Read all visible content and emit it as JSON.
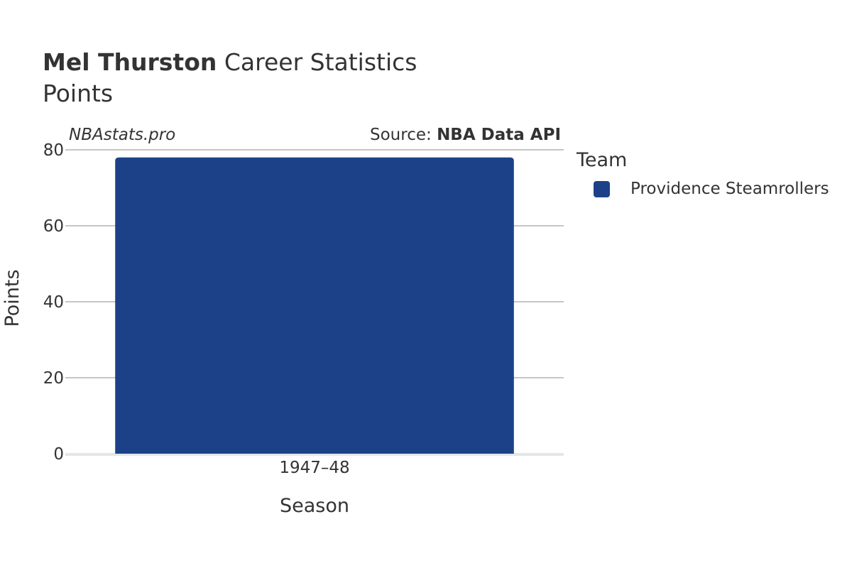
{
  "header": {
    "title_bold": "Mel Thurston",
    "title_rest": " Career Statistics",
    "subtitle": "Points"
  },
  "watermark": "NBAstats.pro",
  "source": {
    "prefix": "Source: ",
    "name": "NBA Data API"
  },
  "legend": {
    "title": "Team",
    "items": [
      {
        "label": "Providence Steamrollers",
        "color": "#1c4189"
      }
    ]
  },
  "chart_data": {
    "type": "bar",
    "categories": [
      "1947–48"
    ],
    "series": [
      {
        "name": "Providence Steamrollers",
        "values": [
          78
        ],
        "color": "#1c4189"
      }
    ],
    "xlabel": "Season",
    "ylabel": "Points",
    "ylim": [
      0,
      80
    ],
    "yticks": [
      0,
      20,
      40,
      60,
      80
    ],
    "grid": true,
    "legend_position": "right"
  }
}
